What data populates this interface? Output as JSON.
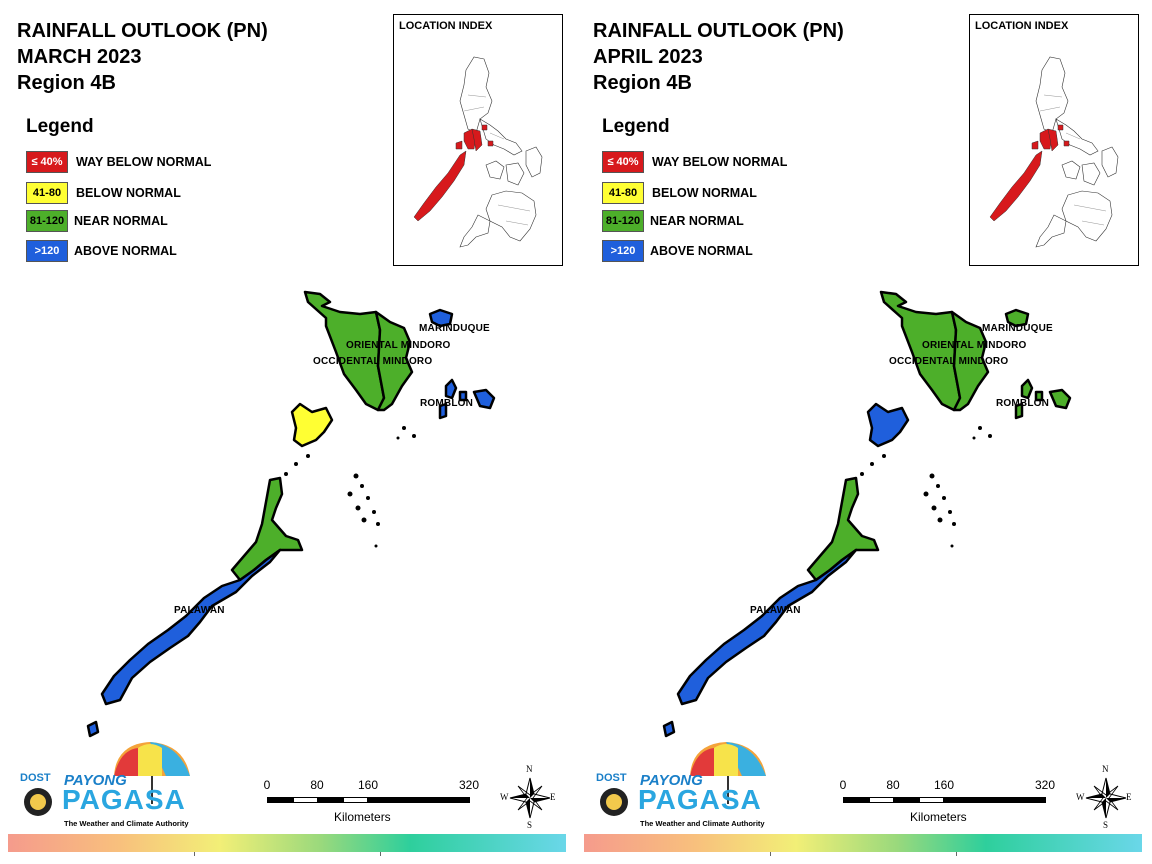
{
  "panels": [
    {
      "title_lines": [
        "RAINFALL OUTLOOK (PN)",
        "MARCH 2023",
        "Region 4B"
      ],
      "legend_title": "Legend",
      "legend": [
        {
          "code": "≤ 40%",
          "label": "WAY BELOW NORMAL",
          "color": "#d7191c",
          "text_color": "#ffffff"
        },
        {
          "code": "41-80",
          "label": "BELOW NORMAL",
          "color": "#ffff33",
          "text_color": "#000000"
        },
        {
          "code": "81-120",
          "label": "NEAR NORMAL",
          "color": "#4daf2a",
          "text_color": "#000000"
        },
        {
          "code": ">120",
          "label": "ABOVE NORMAL",
          "color": "#1f5fdc",
          "text_color": "#ffffff"
        }
      ],
      "index_title": "LOCATION INDEX",
      "places": {
        "marinduque": "MARINDUQUE",
        "oriental_mindoro": "ORIENTAL MINDORO",
        "occidental_mindoro": "OCCIDENTAL MINDORO",
        "romblon": "ROMBLON",
        "palawan": "PALAWAN"
      },
      "province_category": {
        "occidental_mindoro": "NEAR NORMAL",
        "oriental_mindoro": "NEAR NORMAL",
        "marinduque": "ABOVE NORMAL",
        "romblon": "ABOVE NORMAL",
        "north_palawan": "BELOW NORMAL",
        "central_palawan": "NEAR NORMAL",
        "south_palawan": "ABOVE NORMAL"
      }
    },
    {
      "title_lines": [
        "RAINFALL OUTLOOK (PN)",
        "APRIL 2023",
        "Region 4B"
      ],
      "legend_title": "Legend",
      "legend": [
        {
          "code": "≤ 40%",
          "label": "WAY BELOW NORMAL",
          "color": "#d7191c",
          "text_color": "#ffffff"
        },
        {
          "code": "41-80",
          "label": "BELOW NORMAL",
          "color": "#ffff33",
          "text_color": "#000000"
        },
        {
          "code": "81-120",
          "label": "NEAR NORMAL",
          "color": "#4daf2a",
          "text_color": "#000000"
        },
        {
          "code": ">120",
          "label": "ABOVE NORMAL",
          "color": "#1f5fdc",
          "text_color": "#ffffff"
        }
      ],
      "index_title": "LOCATION INDEX",
      "places": {
        "marinduque": "MARINDUQUE",
        "oriental_mindoro": "ORIENTAL MINDORO",
        "occidental_mindoro": "OCCIDENTAL MINDORO",
        "romblon": "ROMBLON",
        "palawan": "PALAWAN"
      },
      "province_category": {
        "occidental_mindoro": "NEAR NORMAL",
        "oriental_mindoro": "NEAR NORMAL",
        "marinduque": "NEAR NORMAL",
        "romblon": "NEAR NORMAL",
        "north_palawan": "ABOVE NORMAL",
        "central_palawan": "NEAR NORMAL",
        "south_palawan": "ABOVE NORMAL"
      }
    }
  ],
  "scale": {
    "ticks": [
      "0",
      "80",
      "160",
      "320"
    ],
    "unit": "Kilometers"
  },
  "compass": {
    "n": "N",
    "s": "S",
    "e": "E",
    "w": "W"
  },
  "logo": {
    "agency": "DOST",
    "brand_top": "PAYONG",
    "brand_main": "PAGASA",
    "tagline": "The Weather and Climate Authority"
  },
  "region_highlight_color": "#d7191c"
}
